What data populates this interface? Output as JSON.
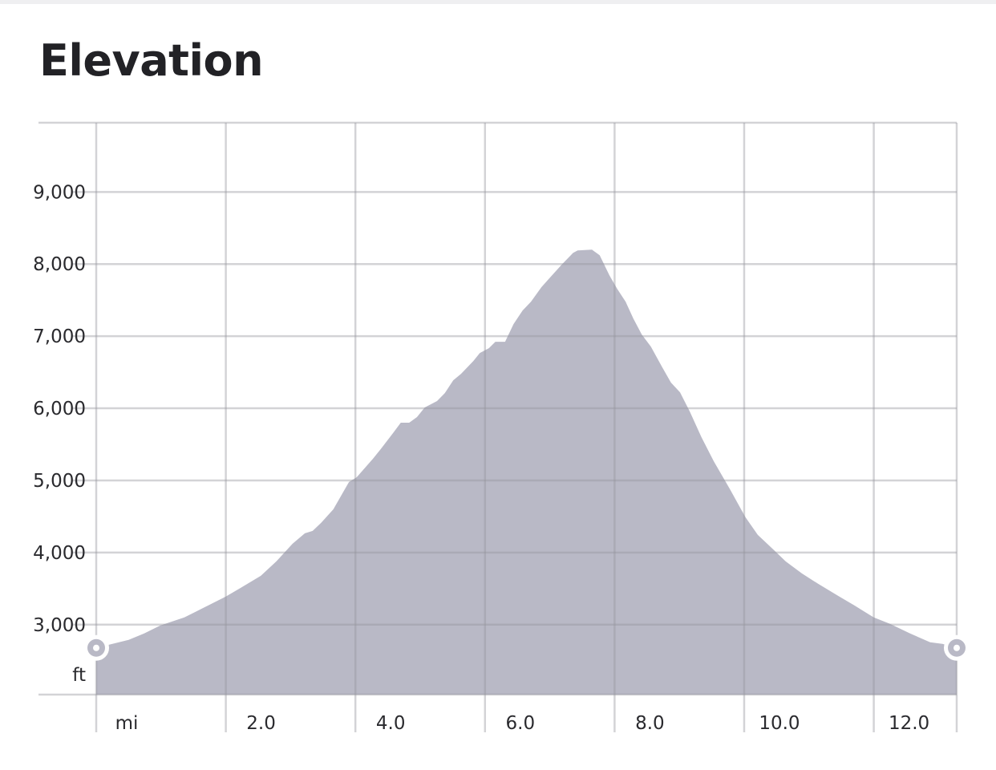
{
  "header": {
    "title": "Elevation"
  },
  "chart_data": {
    "type": "area",
    "title": "Elevation",
    "xlabel": "mi",
    "ylabel": "ft",
    "xlim": [
      0,
      13.28
    ],
    "ylim": [
      2030,
      9960
    ],
    "x_ticks": [
      0,
      2,
      4,
      6,
      8,
      10,
      12
    ],
    "x_tick_labels": [
      "mi",
      "2.0",
      "4.0",
      "6.0",
      "8.0",
      "10.0",
      "12.0"
    ],
    "y_ticks": [
      3000,
      4000,
      5000,
      6000,
      7000,
      8000,
      9000
    ],
    "y_tick_labels": [
      "3,000",
      "4,000",
      "5,000",
      "6,000",
      "7,000",
      "8,000",
      "9,000"
    ],
    "grid": true,
    "fill_color": "#b9b9c6",
    "grid_color": "#d6d6d8",
    "x": [
      0,
      0.25,
      0.5,
      0.74,
      0.99,
      1.36,
      1.73,
      2.0,
      2.23,
      2.54,
      2.78,
      3.03,
      3.22,
      3.34,
      3.47,
      3.66,
      3.9,
      4.02,
      4.27,
      4.39,
      4.58,
      4.7,
      4.83,
      4.95,
      5.07,
      5.26,
      5.38,
      5.51,
      5.63,
      5.82,
      5.92,
      6.06,
      6.16,
      6.31,
      6.44,
      6.58,
      6.71,
      6.87,
      6.99,
      7.18,
      7.36,
      7.43,
      7.65,
      7.77,
      7.92,
      8.04,
      8.17,
      8.29,
      8.42,
      8.56,
      8.73,
      8.87,
      9.01,
      9.16,
      9.34,
      9.53,
      9.78,
      10.02,
      10.21,
      10.46,
      10.64,
      10.89,
      11.14,
      11.45,
      11.7,
      12.0,
      12.25,
      12.56,
      12.87,
      13.06,
      13.28
    ],
    "y": [
      2678,
      2733,
      2789,
      2878,
      2989,
      3100,
      3267,
      3389,
      3511,
      3678,
      3878,
      4122,
      4267,
      4300,
      4411,
      4600,
      4978,
      5044,
      5300,
      5433,
      5656,
      5800,
      5800,
      5878,
      6011,
      6100,
      6211,
      6389,
      6478,
      6656,
      6767,
      6833,
      6922,
      6922,
      7167,
      7356,
      7478,
      7678,
      7800,
      7989,
      8156,
      8189,
      8200,
      8122,
      7844,
      7656,
      7478,
      7244,
      7022,
      6856,
      6578,
      6356,
      6222,
      5956,
      5600,
      5267,
      4878,
      4489,
      4244,
      4033,
      3878,
      3711,
      3567,
      3400,
      3267,
      3100,
      3011,
      2878,
      2756,
      2733,
      2678
    ],
    "markers": [
      "start",
      "end"
    ]
  }
}
